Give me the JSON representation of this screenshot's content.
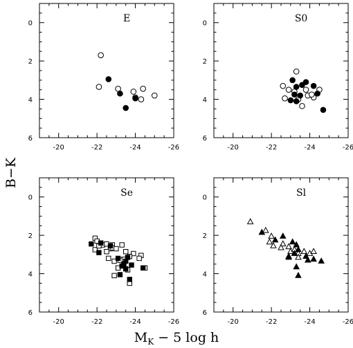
{
  "figure": {
    "xlabel_main": "M",
    "xlabel_sub": "K",
    "xlabel_rest": " − 5 log h",
    "ylabel": "B−K"
  },
  "chart_data": [
    {
      "type": "scatter",
      "title": "E",
      "xlim": [
        -19,
        -26
      ],
      "ylim": [
        6,
        -1
      ],
      "x_ticks": [
        "-20",
        "-22",
        "-24",
        "-26"
      ],
      "y_ticks": [
        "0",
        "2",
        "4",
        "6"
      ],
      "series": [
        {
          "marker": "circle-open",
          "points": [
            [
              -22.2,
              1.7
            ],
            [
              -22.1,
              3.35
            ],
            [
              -23.1,
              3.45
            ],
            [
              -23.9,
              3.6
            ],
            [
              -24.0,
              3.9
            ],
            [
              -24.3,
              4.0
            ],
            [
              -24.4,
              3.45
            ],
            [
              -25.0,
              3.8
            ]
          ]
        },
        {
          "marker": "circle-filled",
          "points": [
            [
              -22.6,
              2.95
            ],
            [
              -23.2,
              3.7
            ],
            [
              -24.0,
              3.95
            ],
            [
              -23.5,
              4.45
            ]
          ]
        }
      ]
    },
    {
      "type": "scatter",
      "title": "S0",
      "xlim": [
        -19,
        -26
      ],
      "ylim": [
        6,
        -1
      ],
      "x_ticks": [
        "-20",
        "-22",
        "-24",
        "-26"
      ],
      "y_ticks": [
        "0",
        "2",
        "4",
        "6"
      ],
      "series": [
        {
          "marker": "circle-open",
          "points": [
            [
              -23.3,
              2.55
            ],
            [
              -22.6,
              3.3
            ],
            [
              -22.9,
              3.5
            ],
            [
              -23.2,
              3.6
            ],
            [
              -23.8,
              3.5
            ],
            [
              -23.9,
              3.8
            ],
            [
              -24.2,
              3.9
            ],
            [
              -22.7,
              3.95
            ],
            [
              -23.4,
              4.0
            ],
            [
              -23.6,
              4.35
            ],
            [
              -24.5,
              3.5
            ],
            [
              -24.1,
              3.75
            ]
          ]
        },
        {
          "marker": "circle-filled",
          "points": [
            [
              -23.1,
              3.0
            ],
            [
              -23.3,
              3.35
            ],
            [
              -23.2,
              3.75
            ],
            [
              -23.5,
              3.8
            ],
            [
              -23.0,
              4.05
            ],
            [
              -23.3,
              4.1
            ],
            [
              -23.8,
              3.1
            ],
            [
              -24.2,
              3.3
            ],
            [
              -24.4,
              3.7
            ],
            [
              -24.7,
              4.55
            ],
            [
              -23.6,
              3.25
            ]
          ]
        }
      ]
    },
    {
      "type": "scatter",
      "title": "Se",
      "xlim": [
        -19,
        -26
      ],
      "ylim": [
        6,
        -1
      ],
      "x_ticks": [
        "-20",
        "-22",
        "-24",
        "-26"
      ],
      "y_ticks": [
        "0",
        "2",
        "4",
        "6"
      ],
      "series": [
        {
          "marker": "square-open",
          "points": [
            [
              -21.9,
              2.15
            ],
            [
              -22.0,
              2.3
            ],
            [
              -22.3,
              2.5
            ],
            [
              -22.5,
              2.45
            ],
            [
              -22.8,
              2.5
            ],
            [
              -22.7,
              2.7
            ],
            [
              -21.9,
              2.75
            ],
            [
              -22.5,
              2.85
            ],
            [
              -22.8,
              2.65
            ],
            [
              -23.0,
              2.7
            ],
            [
              -23.3,
              2.5
            ],
            [
              -23.5,
              2.85
            ],
            [
              -23.9,
              2.95
            ],
            [
              -24.3,
              3.05
            ],
            [
              -22.6,
              3.2
            ],
            [
              -22.9,
              3.35
            ],
            [
              -23.4,
              3.25
            ],
            [
              -23.7,
              3.1
            ],
            [
              -24.2,
              3.2
            ],
            [
              -23.1,
              3.7
            ],
            [
              -23.6,
              3.8
            ],
            [
              -24.5,
              3.7
            ],
            [
              -23.7,
              4.5
            ],
            [
              -22.9,
              4.1
            ],
            [
              -23.2,
              3.3
            ],
            [
              -22.1,
              2.55
            ]
          ]
        },
        {
          "marker": "square-filled",
          "points": [
            [
              -21.7,
              2.45
            ],
            [
              -22.2,
              2.4
            ],
            [
              -22.1,
              2.9
            ],
            [
              -22.7,
              2.55
            ],
            [
              -23.1,
              3.2
            ],
            [
              -23.4,
              3.5
            ],
            [
              -23.5,
              3.35
            ],
            [
              -23.6,
              3.15
            ],
            [
              -23.3,
              3.6
            ],
            [
              -23.8,
              3.55
            ],
            [
              -24.4,
              3.7
            ],
            [
              -23.2,
              4.05
            ],
            [
              -23.7,
              4.3
            ],
            [
              -23.5,
              3.75
            ]
          ]
        }
      ]
    },
    {
      "type": "scatter",
      "title": "Sl",
      "xlim": [
        -19,
        -26
      ],
      "ylim": [
        6,
        -1
      ],
      "x_ticks": [
        "-20",
        "-22",
        "-24",
        "-26"
      ],
      "y_ticks": [
        "0",
        "2",
        "4",
        "6"
      ],
      "series": [
        {
          "marker": "triangle-open",
          "points": [
            [
              -20.9,
              1.3
            ],
            [
              -21.7,
              1.75
            ],
            [
              -22.0,
              2.05
            ],
            [
              -21.9,
              2.35
            ],
            [
              -22.1,
              2.55
            ],
            [
              -22.6,
              2.45
            ],
            [
              -22.5,
              2.65
            ],
            [
              -22.9,
              2.6
            ],
            [
              -23.0,
              2.85
            ],
            [
              -23.2,
              2.75
            ],
            [
              -23.4,
              2.95
            ],
            [
              -23.7,
              2.85
            ],
            [
              -24.0,
              2.95
            ],
            [
              -24.2,
              2.85
            ],
            [
              -22.9,
              3.1
            ],
            [
              -23.4,
              3.15
            ]
          ]
        },
        {
          "marker": "triangle-filled",
          "points": [
            [
              -21.5,
              1.85
            ],
            [
              -22.2,
              2.25
            ],
            [
              -22.6,
              2.05
            ],
            [
              -23.1,
              2.35
            ],
            [
              -23.3,
              2.5
            ],
            [
              -23.4,
              2.75
            ],
            [
              -23.2,
              2.95
            ],
            [
              -23.8,
              3.1
            ],
            [
              -24.2,
              3.25
            ],
            [
              -24.6,
              3.35
            ],
            [
              -23.9,
              3.3
            ],
            [
              -23.3,
              3.65
            ],
            [
              -23.4,
              4.1
            ],
            [
              -22.9,
              3.15
            ]
          ]
        }
      ]
    }
  ]
}
